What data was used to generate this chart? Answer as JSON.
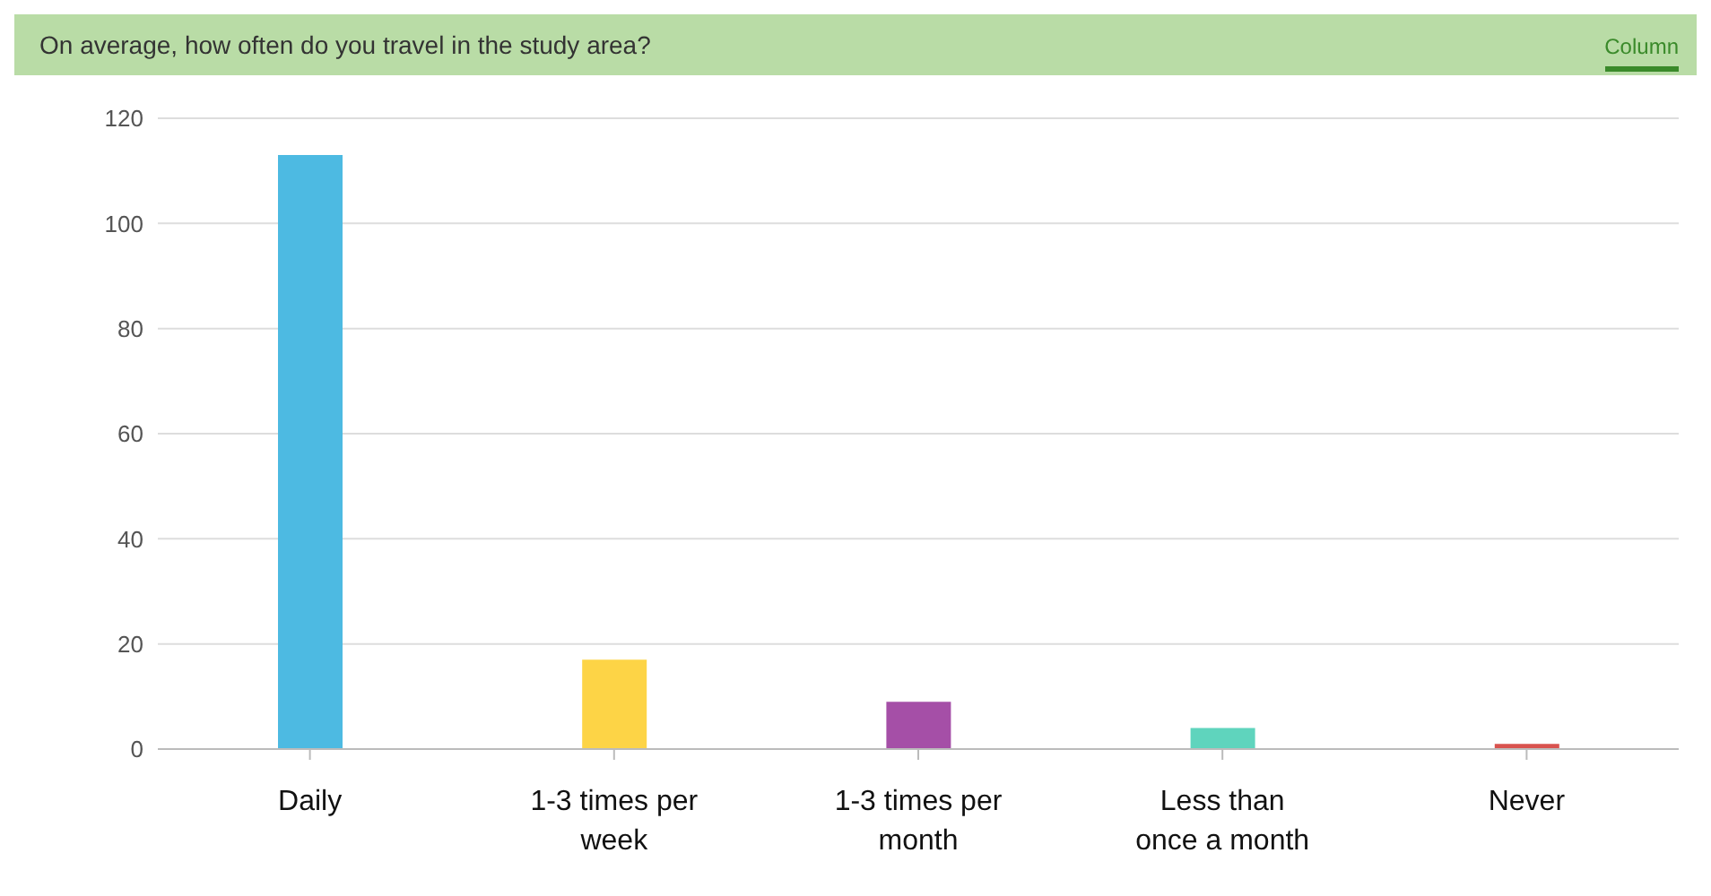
{
  "chart_data": {
    "type": "bar",
    "title": "On average, how often do you travel in the study area?",
    "annotations": [
      "Column"
    ],
    "categories": [
      "Daily",
      "1-3 times per week",
      "1-3 times per month",
      "Less than once a month",
      "Never"
    ],
    "values": [
      113,
      17,
      9,
      4,
      1
    ],
    "colors": [
      "#4dbae2",
      "#fdd446",
      "#a54fa7",
      "#5fd4bd",
      "#d9534f"
    ],
    "ylim": [
      0,
      120
    ],
    "yticks": [
      0,
      20,
      40,
      60,
      80,
      100,
      120
    ],
    "grid": "y"
  }
}
